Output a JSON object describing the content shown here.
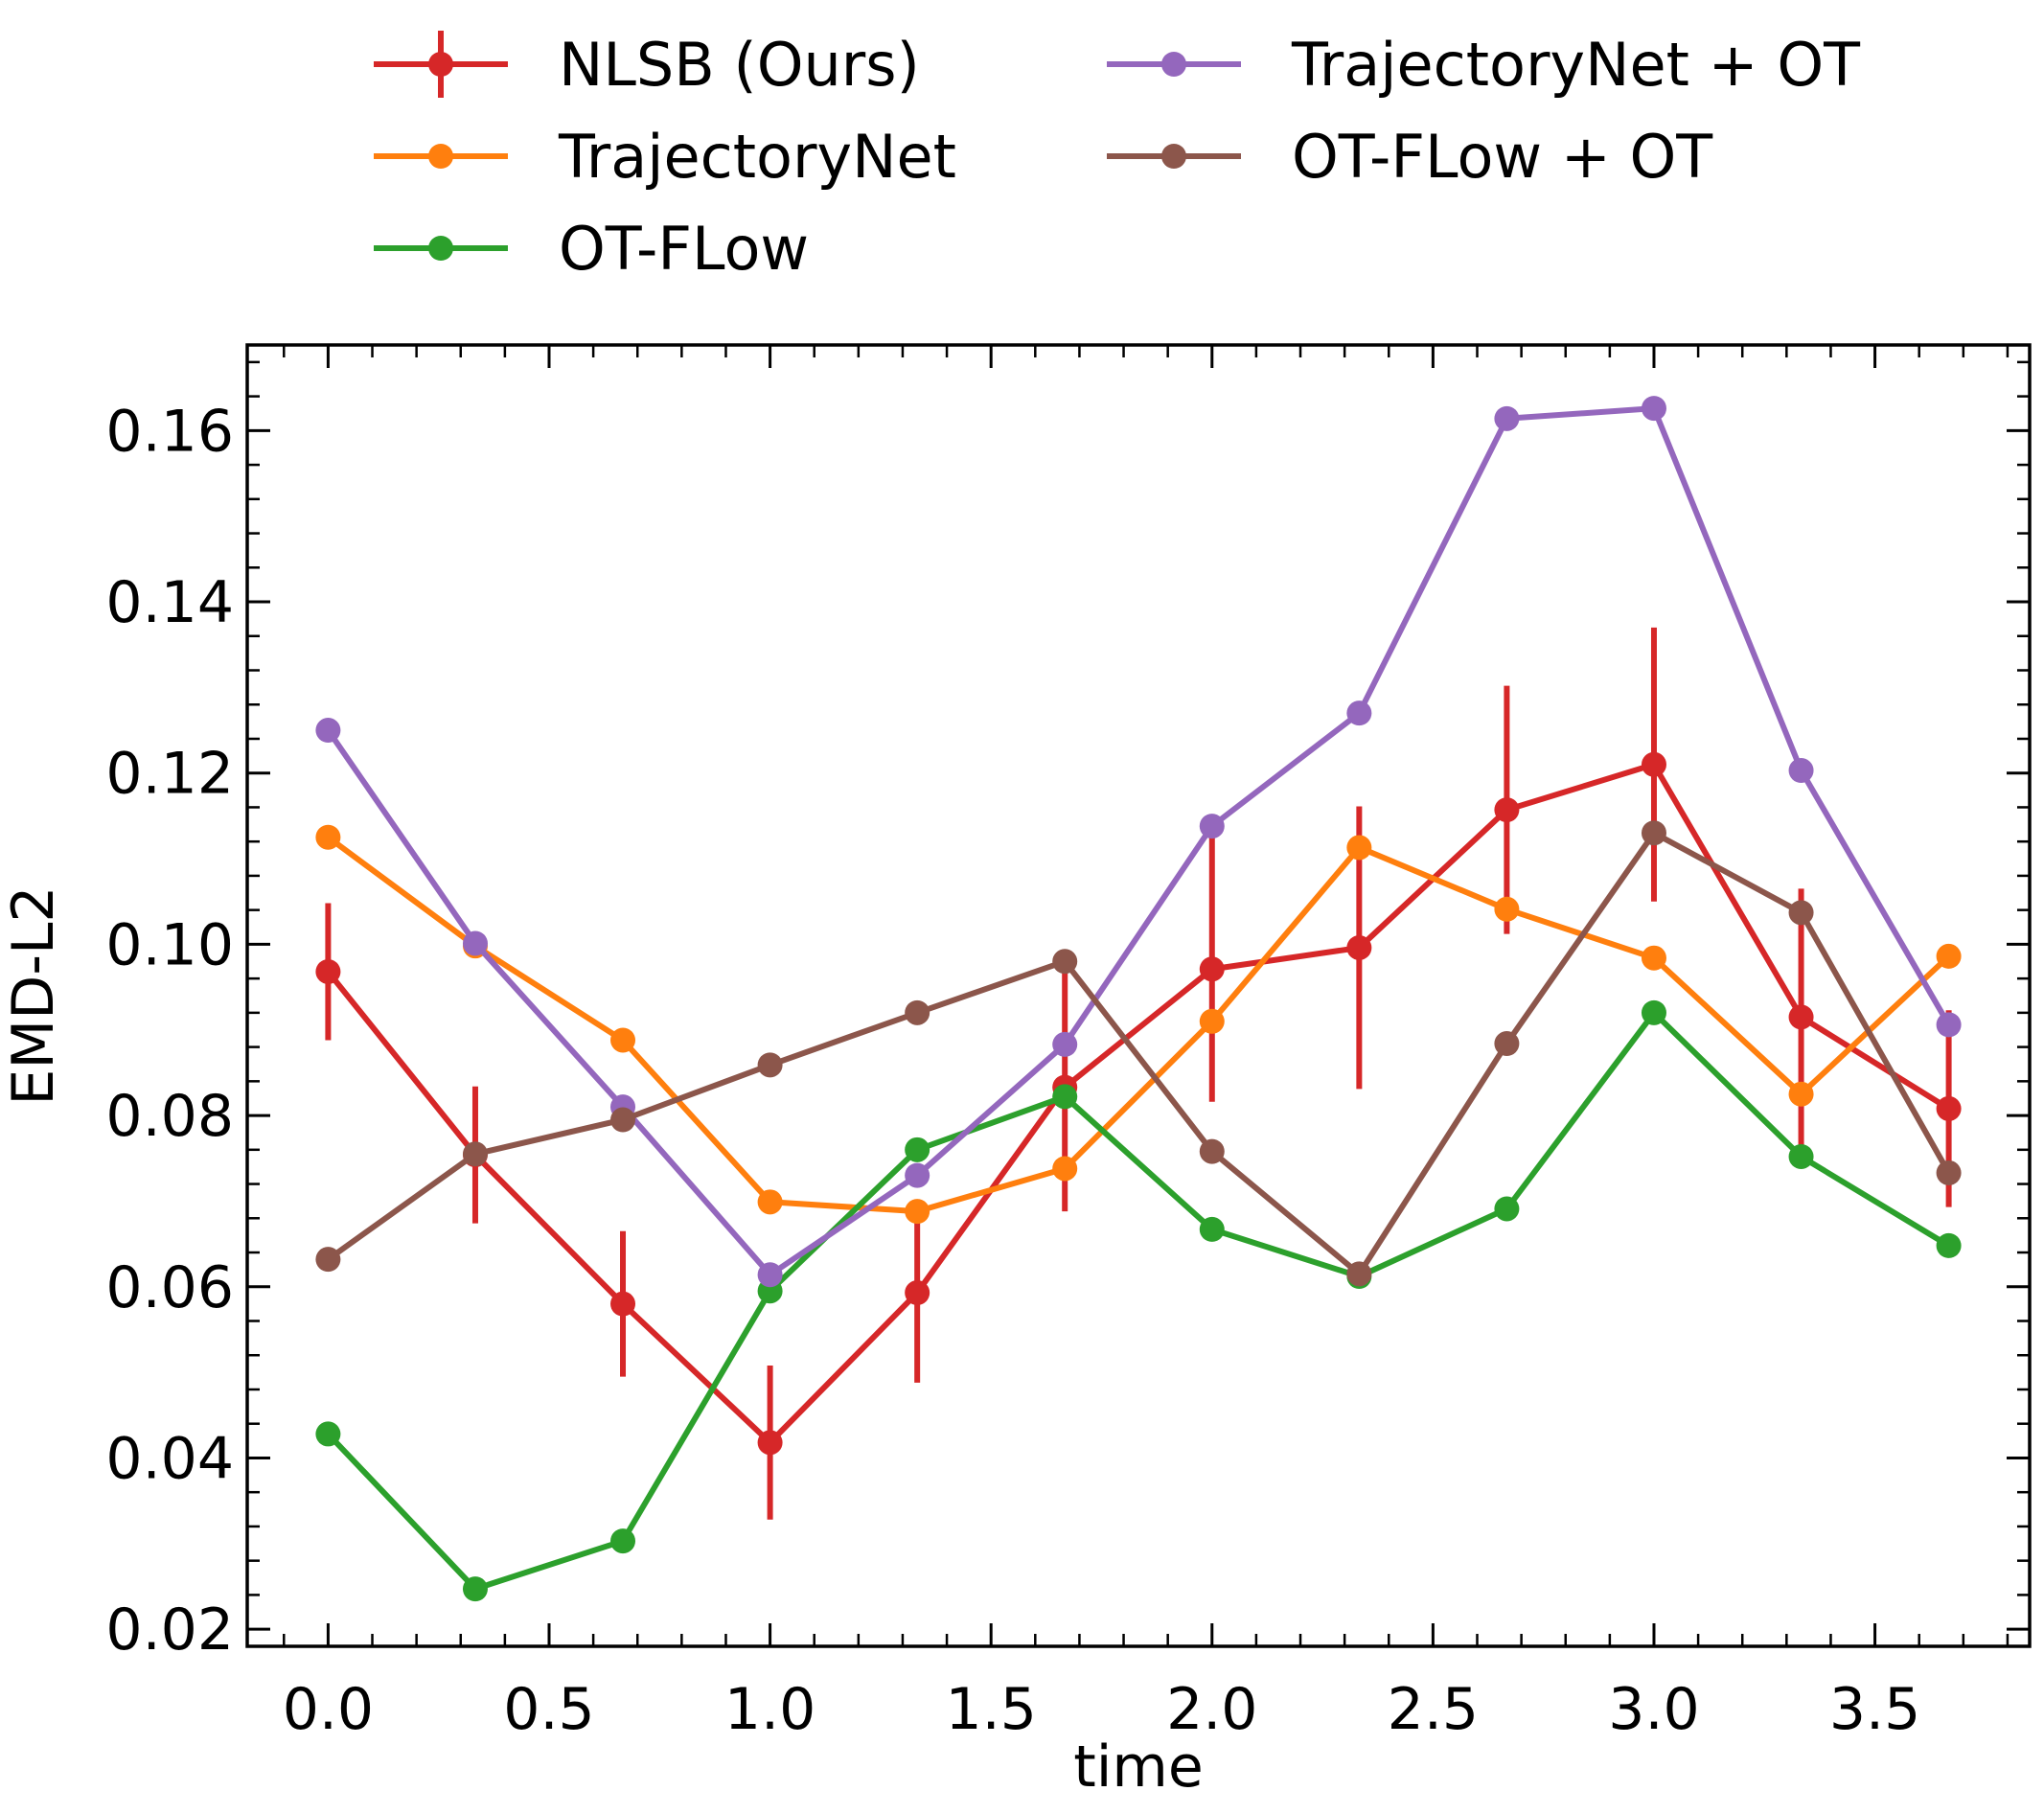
{
  "chart_data": {
    "type": "line",
    "title": "",
    "xlabel": "time",
    "ylabel": "EMD-L2",
    "xlim": [
      -0.183,
      3.85
    ],
    "ylim": [
      0.018,
      0.17
    ],
    "grid": false,
    "legend_position": "top, outside plot area, two columns",
    "x_ticks": [
      "0.0",
      "0.5",
      "1.0",
      "1.5",
      "2.0",
      "2.5",
      "3.0",
      "3.5"
    ],
    "y_ticks": [
      "0.02",
      "0.04",
      "0.06",
      "0.08",
      "0.10",
      "0.12",
      "0.14",
      "0.16"
    ],
    "x": [
      0.0,
      0.333,
      0.667,
      1.0,
      1.333,
      1.667,
      2.0,
      2.333,
      2.667,
      3.0,
      3.333,
      3.667
    ],
    "series": [
      {
        "name": "NLSB (Ours)",
        "color": "#d62728",
        "values": [
          0.0968,
          0.0754,
          0.058,
          0.0418,
          0.0593,
          0.0833,
          0.0971,
          0.0996,
          0.1157,
          0.121,
          0.0915,
          0.0808
        ],
        "errors": [
          0.008,
          0.008,
          0.0085,
          0.009,
          0.0105,
          0.0145,
          0.0155,
          0.0165,
          0.0145,
          0.016,
          0.015,
          0.0115
        ]
      },
      {
        "name": "TrajectoryNet",
        "color": "#ff7f0e",
        "values": [
          0.1125,
          0.0998,
          0.0888,
          0.0699,
          0.0688,
          0.0738,
          0.091,
          0.1113,
          0.1041,
          0.0984,
          0.0825,
          0.0986
        ]
      },
      {
        "name": "OT-FLow",
        "color": "#2ca02c",
        "values": [
          0.0428,
          0.0247,
          0.0303,
          0.0595,
          0.076,
          0.0822,
          0.0667,
          0.0612,
          0.0691,
          0.092,
          0.0752,
          0.0648
        ]
      },
      {
        "name": "TrajectoryNet + OT",
        "color": "#9467bd",
        "values": [
          0.125,
          0.1001,
          0.081,
          0.0614,
          0.073,
          0.0883,
          0.1138,
          0.127,
          0.1614,
          0.1626,
          0.1203,
          0.0906
        ]
      },
      {
        "name": "OT-FLow + OT",
        "color": "#8c564b",
        "values": [
          0.0632,
          0.0755,
          0.0795,
          0.0859,
          0.092,
          0.098,
          0.0758,
          0.0615,
          0.0884,
          0.113,
          0.1037,
          0.0733
        ]
      }
    ]
  }
}
